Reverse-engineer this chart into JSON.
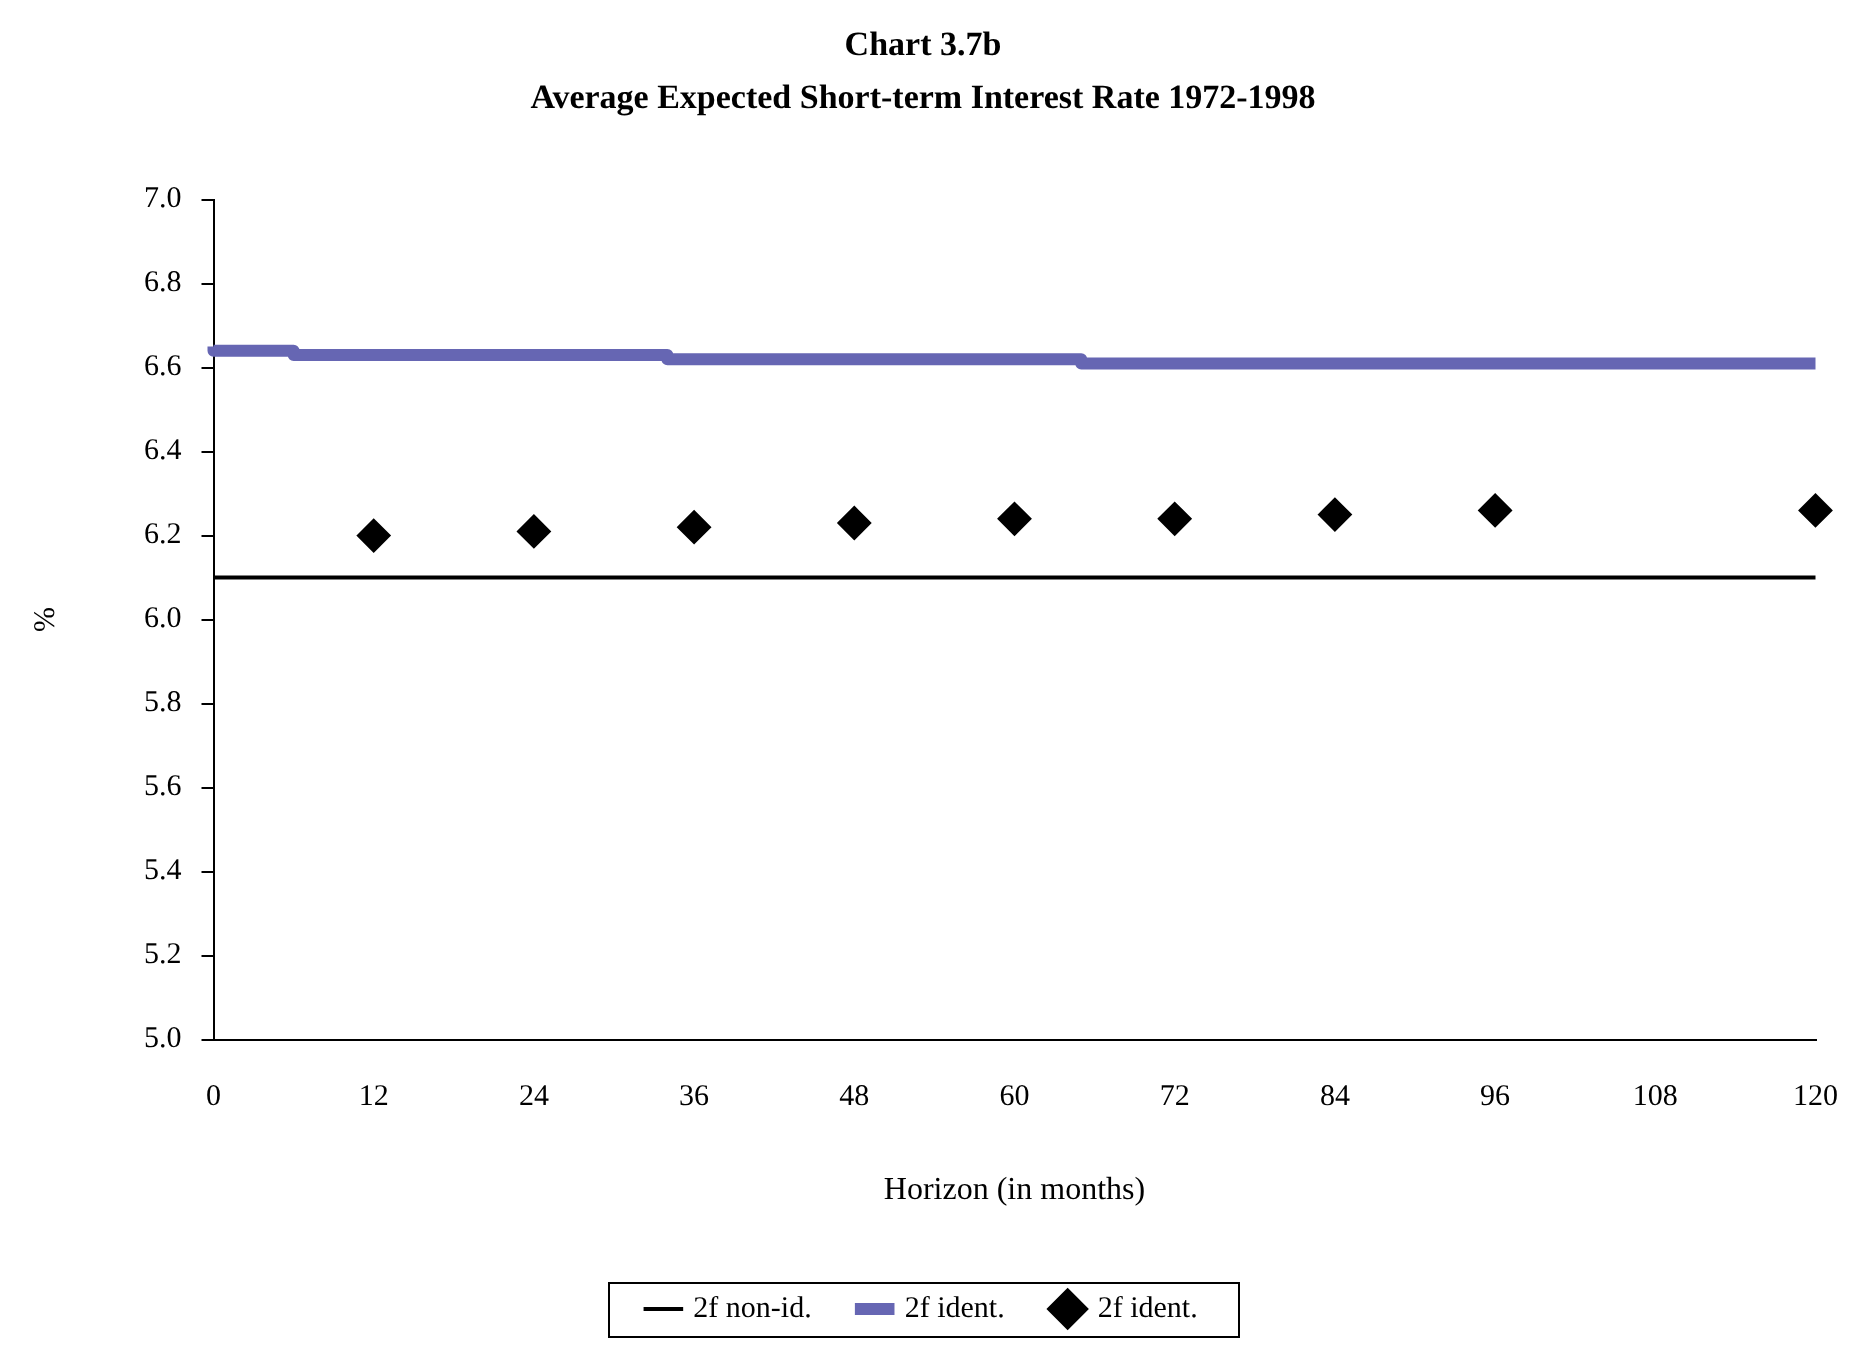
{
  "chart_data": {
    "type": "line",
    "title": "Chart 3.7b",
    "subtitle": "Average Expected Short-term Interest Rate 1972-1998",
    "xlabel": "Horizon (in months)",
    "ylabel": "%",
    "xlim": [
      0,
      120
    ],
    "xticks": [
      0,
      12,
      24,
      36,
      48,
      60,
      72,
      84,
      96,
      108,
      120
    ],
    "ylim": [
      5.0,
      7.0
    ],
    "yticks": [
      {
        "value": 5.0,
        "label": "5.0"
      },
      {
        "value": 5.2,
        "label": "5.2"
      },
      {
        "value": 5.4,
        "label": "5.4"
      },
      {
        "value": 5.6,
        "label": "5.6"
      },
      {
        "value": 5.8,
        "label": "5.8"
      },
      {
        "value": 6.0,
        "label": "6.0"
      },
      {
        "value": 6.2,
        "label": "6.2"
      },
      {
        "value": 6.4,
        "label": "6.4"
      },
      {
        "value": 6.6,
        "label": "6.6"
      },
      {
        "value": 6.8,
        "label": "6.8"
      },
      {
        "value": 7.0,
        "label": "7.0"
      }
    ],
    "grid": false,
    "legend": "bottom",
    "series": [
      {
        "name": "2f non-id.",
        "color": "#000000",
        "marker": "none",
        "x": [
          0,
          120
        ],
        "values": [
          6.1,
          6.1
        ]
      },
      {
        "name": "2f ident.",
        "type": "step",
        "color": "#6666b3",
        "marker": "none",
        "x": [
          0,
          6,
          34,
          65,
          97,
          120
        ],
        "values": [
          6.65,
          6.64,
          6.63,
          6.62,
          6.61,
          6.61
        ]
      },
      {
        "name": "2f ident.",
        "type": "scatter",
        "color": "#000000",
        "marker": "diamond",
        "x": [
          12,
          24,
          36,
          48,
          60,
          72,
          84,
          96,
          120
        ],
        "values": [
          6.2,
          6.21,
          6.22,
          6.23,
          6.24,
          6.24,
          6.25,
          6.26,
          6.26
        ]
      }
    ]
  }
}
